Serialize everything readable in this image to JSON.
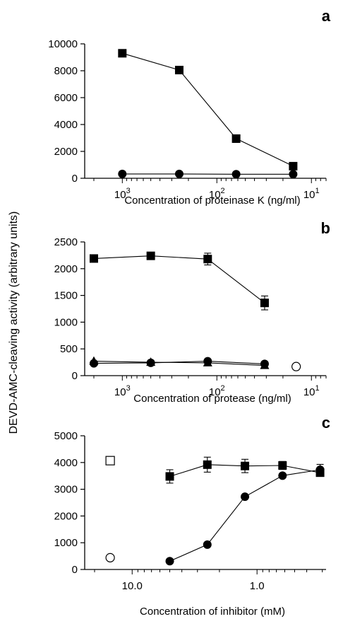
{
  "ylabel": "DEVD-AMC-cleaving activity (arbitrary units)",
  "chart_data": [
    {
      "panel": "a",
      "type": "line",
      "xscale": "log-reversed",
      "xlabel": "Concentration of proteinase K (ng/ml)",
      "xlim": [
        2500,
        7
      ],
      "ylim": [
        0,
        10000
      ],
      "yticks": [
        0,
        2000,
        4000,
        6000,
        8000,
        10000
      ],
      "xticks": [
        1000,
        100,
        10
      ],
      "xtick_labels": [
        {
          "base": "10",
          "exp": "3"
        },
        {
          "base": "10",
          "exp": "2"
        },
        {
          "base": "10",
          "exp": "1"
        }
      ],
      "series": [
        {
          "marker": "filled-square",
          "points": [
            {
              "x": 1000,
              "y": 9300
            },
            {
              "x": 250,
              "y": 8050
            },
            {
              "x": 62.5,
              "y": 2950,
              "err": 280
            },
            {
              "x": 15.6,
              "y": 900,
              "err": 250
            }
          ]
        },
        {
          "marker": "filled-circle",
          "points": [
            {
              "x": 1000,
              "y": 320
            },
            {
              "x": 250,
              "y": 320
            },
            {
              "x": 62.5,
              "y": 300
            },
            {
              "x": 15.6,
              "y": 300
            }
          ]
        }
      ]
    },
    {
      "panel": "b",
      "type": "line",
      "xscale": "log-reversed",
      "xlabel": "Concentration of protease (ng/ml)",
      "xlim": [
        2500,
        7
      ],
      "ylim": [
        0,
        2500
      ],
      "yticks": [
        0,
        500,
        1000,
        1500,
        2000,
        2500
      ],
      "xticks": [
        1000,
        100,
        10
      ],
      "xtick_labels": [
        {
          "base": "10",
          "exp": "3"
        },
        {
          "base": "10",
          "exp": "2"
        },
        {
          "base": "10",
          "exp": "1"
        }
      ],
      "series": [
        {
          "marker": "filled-square",
          "points": [
            {
              "x": 2000,
              "y": 2190
            },
            {
              "x": 500,
              "y": 2240,
              "err": 60
            },
            {
              "x": 125,
              "y": 2180,
              "err": 110
            },
            {
              "x": 31.25,
              "y": 1360,
              "err": 130
            }
          ]
        },
        {
          "marker": "filled-triangle",
          "points": [
            {
              "x": 2000,
              "y": 270
            },
            {
              "x": 500,
              "y": 250
            },
            {
              "x": 125,
              "y": 240
            },
            {
              "x": 31.25,
              "y": 190
            }
          ]
        },
        {
          "marker": "filled-circle",
          "points": [
            {
              "x": 2000,
              "y": 230
            },
            {
              "x": 500,
              "y": 240
            },
            {
              "x": 125,
              "y": 270
            },
            {
              "x": 31.25,
              "y": 220
            }
          ]
        },
        {
          "marker": "open-circle",
          "points": [
            {
              "x": 14.5,
              "y": 170
            }
          ]
        }
      ]
    },
    {
      "panel": "c",
      "type": "line",
      "xscale": "log-reversed",
      "xlabel": "Concentration of inhibitor (mM)",
      "xlim": [
        24,
        0.28
      ],
      "ylim": [
        0,
        5000
      ],
      "yticks": [
        0,
        1000,
        2000,
        3000,
        4000,
        5000
      ],
      "xticks": [
        10,
        1
      ],
      "xtick_labels": [
        {
          "base": "10.0",
          "exp": ""
        },
        {
          "base": "1.0",
          "exp": ""
        }
      ],
      "series": [
        {
          "marker": "filled-square",
          "points": [
            {
              "x": 5,
              "y": 3480,
              "err": 250
            },
            {
              "x": 2.5,
              "y": 3920,
              "err": 280
            },
            {
              "x": 1.25,
              "y": 3870,
              "err": 250
            },
            {
              "x": 0.625,
              "y": 3890,
              "err": 150
            },
            {
              "x": 0.3125,
              "y": 3620
            }
          ]
        },
        {
          "marker": "filled-circle",
          "points": [
            {
              "x": 5,
              "y": 310
            },
            {
              "x": 2.5,
              "y": 930
            },
            {
              "x": 1.25,
              "y": 2720
            },
            {
              "x": 0.625,
              "y": 3510
            },
            {
              "x": 0.3125,
              "y": 3730,
              "err": 200
            }
          ]
        },
        {
          "marker": "open-square",
          "points": [
            {
              "x": 15,
              "y": 4070
            }
          ]
        },
        {
          "marker": "open-circle",
          "points": [
            {
              "x": 15,
              "y": 440
            }
          ]
        }
      ]
    }
  ]
}
